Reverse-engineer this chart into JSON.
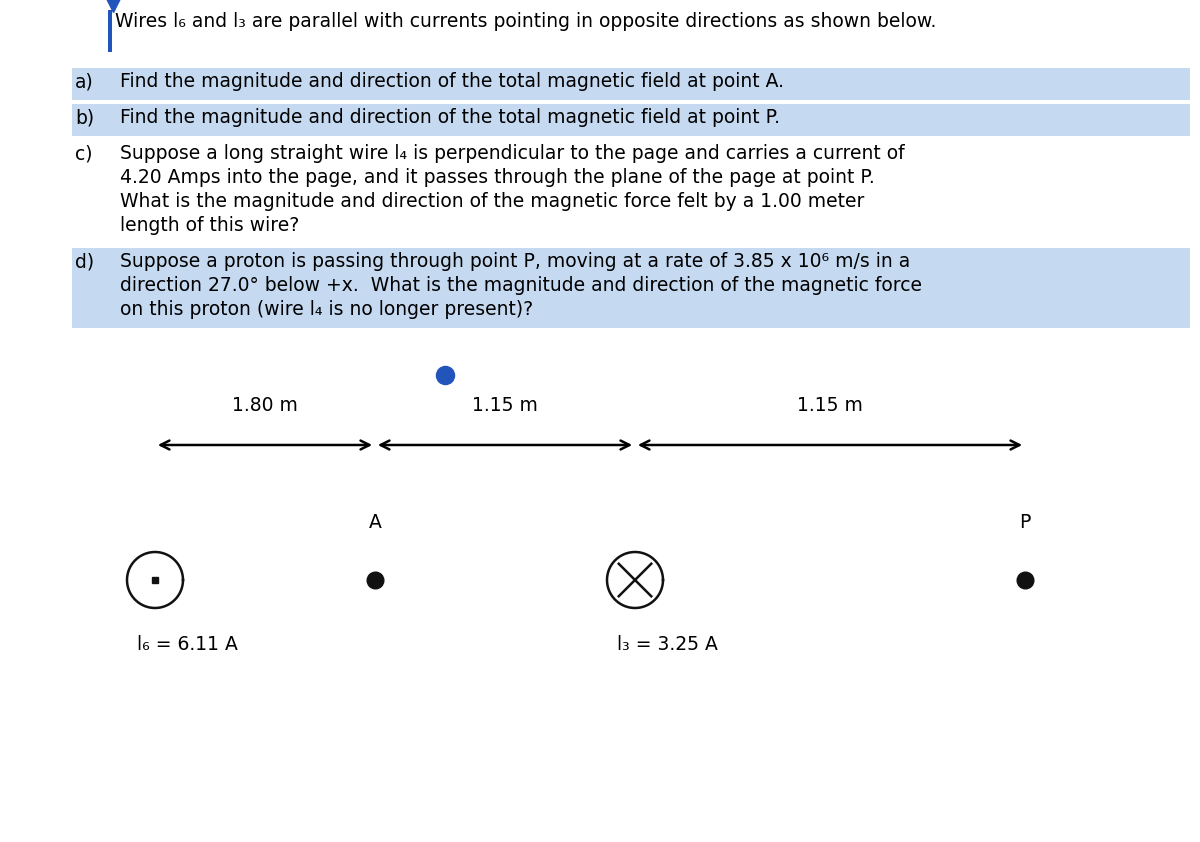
{
  "title_line": "Wires l₆ and l₃ are parallel with currents pointing in opposite directions as shown below.",
  "questions": [
    {
      "label": "a)",
      "text": "Find the magnitude and direction of the total magnetic field at point A.",
      "highlighted": true
    },
    {
      "label": "b)",
      "text": "Find the magnitude and direction of the total magnetic field at point P.",
      "highlighted": true
    },
    {
      "label": "c)",
      "text": "Suppose a long straight wire l₄ is perpendicular to the page and carries a current of\n4.20 Amps into the page, and it passes through the plane of the page at point P.\nWhat is the magnitude and direction of the magnetic force felt by a 1.00 meter\nlength of this wire?",
      "highlighted": false
    },
    {
      "label": "d)",
      "text": "Suppose a proton is passing through point P, moving at a rate of 3.85 x 10⁶ m/s in a\ndirection 27.0° below +x.  What is the magnitude and direction of the magnetic force\non this proton (wire l₄ is no longer present)?",
      "highlighted": true
    }
  ],
  "highlight_color": "#c5d9f1",
  "bg_color": "#ffffff",
  "text_color": "#000000",
  "title_bar_color": "#2255bb",
  "dist_1_label": "1.80 m",
  "dist_2_label": "1.15 m",
  "dist_3_label": "1.15 m",
  "l6_label": "l₆ = 6.11 A",
  "l3_label": "l₃ = 3.25 A",
  "dot_color": "#111111",
  "circle_color": "#111111",
  "probe_dot_color": "#2255bb",
  "fontsize_main": 13.5,
  "fontsize_labels": 13.5
}
